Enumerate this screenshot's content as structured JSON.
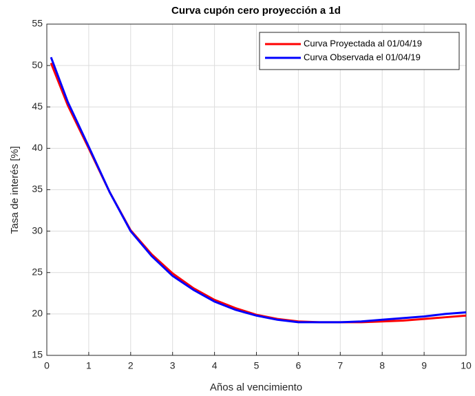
{
  "chart_data": {
    "type": "line",
    "title": "Curva cupón cero proyección a 1d",
    "xlabel": "Años al vencimiento",
    "ylabel": "Tasa de interés [%]",
    "x": [
      0.1,
      0.5,
      1,
      1.5,
      2,
      2.5,
      3,
      3.5,
      4,
      4.5,
      5,
      5.5,
      6,
      6.5,
      7,
      7.5,
      8,
      8.5,
      9,
      9.5,
      10
    ],
    "series": [
      {
        "name": "Curva Proyectada al 01/04/19",
        "color": "#ff0000",
        "values": [
          50.3,
          45.2,
          40.0,
          34.7,
          30.1,
          27.2,
          24.9,
          23.1,
          21.7,
          20.7,
          19.9,
          19.4,
          19.1,
          19.0,
          19.0,
          19.0,
          19.1,
          19.2,
          19.4,
          19.6,
          19.8
        ]
      },
      {
        "name": "Curva Observada el 01/04/19",
        "color": "#0000ff",
        "values": [
          51.0,
          45.6,
          40.2,
          34.7,
          30.0,
          27.0,
          24.6,
          22.9,
          21.5,
          20.5,
          19.8,
          19.3,
          19.0,
          19.0,
          19.0,
          19.1,
          19.3,
          19.5,
          19.7,
          20.0,
          20.2
        ]
      }
    ],
    "xlim": [
      0,
      10
    ],
    "xticks": [
      0,
      1,
      2,
      3,
      4,
      5,
      6,
      7,
      8,
      9,
      10
    ],
    "ylim": [
      15,
      55
    ],
    "yticks": [
      15,
      20,
      25,
      30,
      35,
      40,
      45,
      50,
      55
    ],
    "grid": true,
    "legend": "top-right"
  }
}
